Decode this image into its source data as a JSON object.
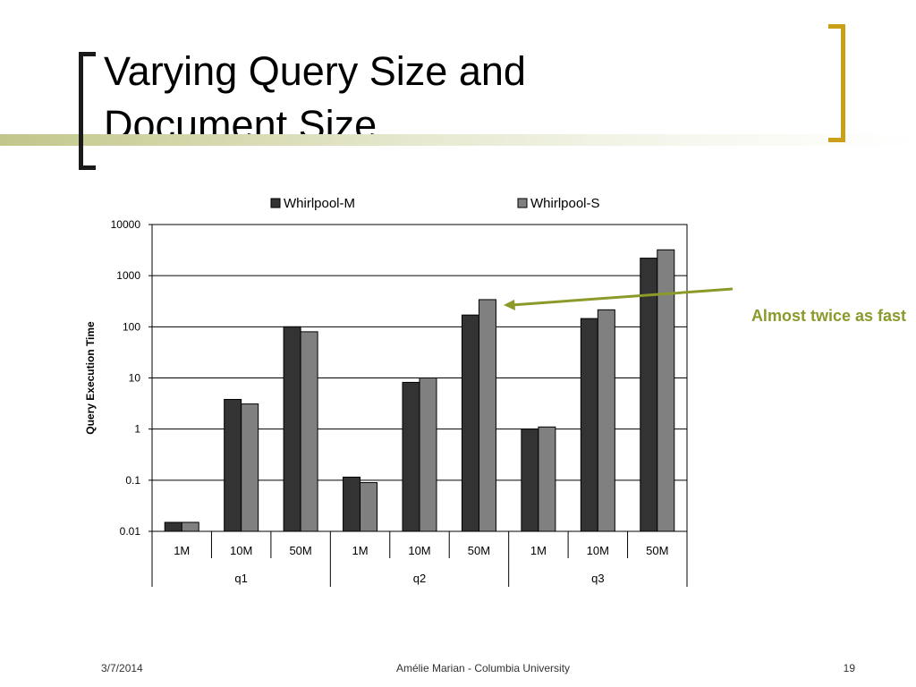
{
  "slide": {
    "title_line1": "Varying Query Size and",
    "title_line2": "Document Size",
    "footer_date": "3/7/2014",
    "footer_center": "Amélie Marian - Columbia University",
    "page_number": "19",
    "annotation": "Almost twice as fast"
  },
  "colors": {
    "series_m": "#333333",
    "series_s": "#808080",
    "annotation": "#8c9a2a",
    "bracket_left": "#1a1a1a",
    "bracket_right": "#c9a018"
  },
  "chart_data": {
    "type": "bar",
    "ylabel": "Query Execution Time",
    "yscale": "log",
    "ylim": [
      0.01,
      10000
    ],
    "yticks": [
      {
        "value": 10000,
        "label": "10000"
      },
      {
        "value": 1000,
        "label": "1000"
      },
      {
        "value": 100,
        "label": "100"
      },
      {
        "value": 10,
        "label": "10"
      },
      {
        "value": 1,
        "label": "1"
      },
      {
        "value": 0.1,
        "label": "0.1"
      },
      {
        "value": 0.01,
        "label": "0.01"
      }
    ],
    "grid": true,
    "legend_position": "top",
    "categories": [
      "1M",
      "10M",
      "50M",
      "1M",
      "10M",
      "50M",
      "1M",
      "10M",
      "50M"
    ],
    "groups": [
      "q1",
      "q2",
      "q3"
    ],
    "series": [
      {
        "name": "Whirlpool-M",
        "values": [
          0.015,
          3.8,
          100,
          0.115,
          8.2,
          170,
          1.0,
          145,
          2200
        ]
      },
      {
        "name": "Whirlpool-S",
        "values": [
          0.015,
          3.1,
          80,
          0.09,
          10,
          340,
          1.1,
          215,
          3200
        ]
      }
    ]
  }
}
